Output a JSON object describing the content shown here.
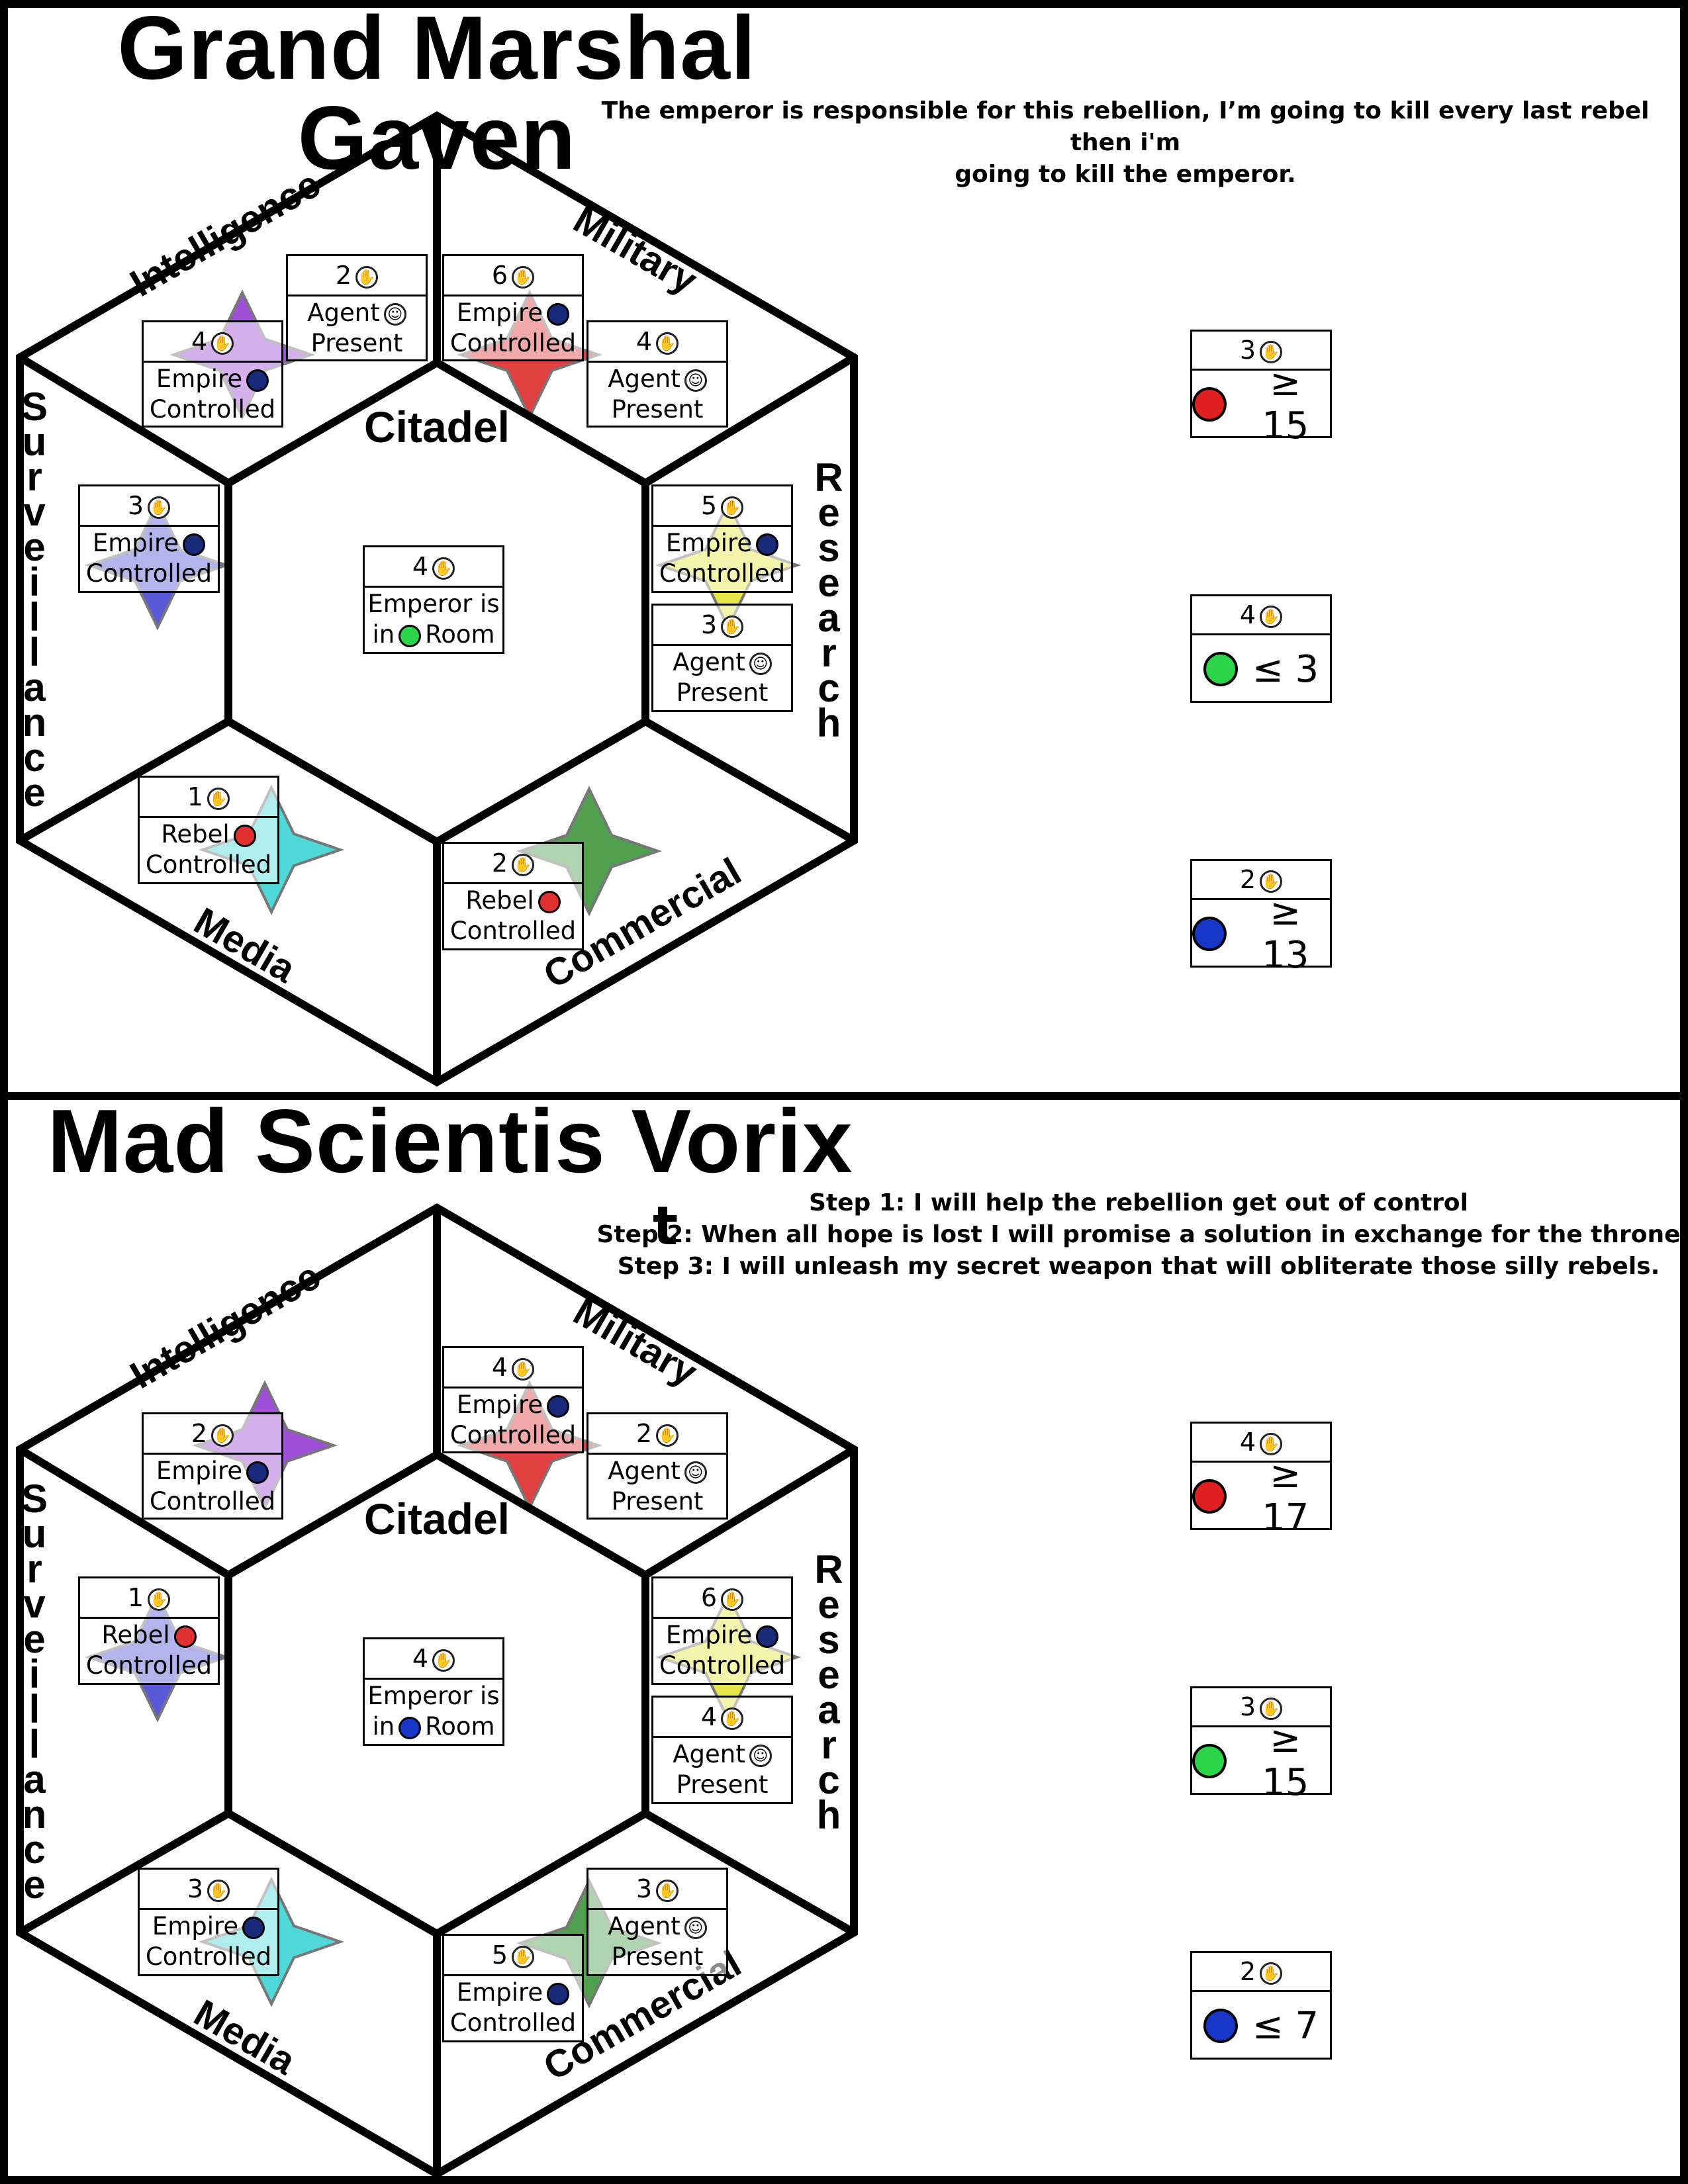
{
  "panels": [
    {
      "title": "Grand Marshal Gaven",
      "quote_lines": [
        "The emperor is responsible for this rebellion, I’m going to kill every last rebel then i'm",
        "going to kill the emperor."
      ],
      "stray_char": "",
      "sectors": {
        "intelligence": "Intelligence",
        "military": "Military",
        "surveillance": "Surveillance",
        "research": "Research",
        "media": "Media",
        "commercial": "Commercial",
        "citadel": "Citadel"
      },
      "cards": {
        "intel_a": {
          "num": "2",
          "line1": "Agent",
          "line2": "Present"
        },
        "intel_b": {
          "num": "4",
          "line1": "Empire",
          "line2": "Controlled"
        },
        "mil_a": {
          "num": "6",
          "line1": "Empire",
          "line2": "Controlled"
        },
        "mil_b": {
          "num": "4",
          "line1": "Agent",
          "line2": "Present"
        },
        "surv": {
          "num": "3",
          "line1": "Empire",
          "line2": "Controlled"
        },
        "res_a": {
          "num": "5",
          "line1": "Empire",
          "line2": "Controlled"
        },
        "res_b": {
          "num": "3",
          "line1": "Agent",
          "line2": "Present"
        },
        "media": {
          "num": "1",
          "line1": "Rebel",
          "line2": "Controlled"
        },
        "comm_a": {
          "num": "2",
          "line1": "Rebel",
          "line2": "Controlled"
        },
        "citadel": {
          "num": "4",
          "line1": "Emperor is",
          "line2a": "in",
          "line2b": "Room"
        }
      },
      "objectives": [
        {
          "num": "3",
          "icon": "gun-icon",
          "cond": "≥ 15"
        },
        {
          "num": "4",
          "icon": "money-icon",
          "cond": "≤ 3"
        },
        {
          "num": "2",
          "icon": "eye-icon",
          "cond": "≥ 13"
        }
      ]
    },
    {
      "title": "Mad Scientis  Vorix",
      "quote_lines": [
        "Step 1: I will help the rebellion get out of control",
        "Step 2: When all hope is lost I will promise a solution in exchange for the throne",
        "Step 3: I will unleash my secret weapon that will obliterate those silly rebels."
      ],
      "stray_char": "t",
      "sectors": {
        "intelligence": "Intelligence",
        "military": "Military",
        "surveillance": "Surveillance",
        "research": "Research",
        "media": "Media",
        "commercial": "Commercial",
        "citadel": "Citadel"
      },
      "cards": {
        "intel_b": {
          "num": "2",
          "line1": "Empire",
          "line2": "Controlled"
        },
        "mil_a": {
          "num": "4",
          "line1": "Empire",
          "line2": "Controlled"
        },
        "mil_b": {
          "num": "2",
          "line1": "Agent",
          "line2": "Present"
        },
        "surv": {
          "num": "1",
          "line1": "Rebel",
          "line2": "Controlled"
        },
        "res_a": {
          "num": "6",
          "line1": "Empire",
          "line2": "Controlled"
        },
        "res_b": {
          "num": "4",
          "line1": "Agent",
          "line2": "Present"
        },
        "media": {
          "num": "3",
          "line1": "Empire",
          "line2": "Controlled"
        },
        "comm_a": {
          "num": "5",
          "line1": "Empire",
          "line2": "Controlled"
        },
        "comm_b": {
          "num": "3",
          "line1": "Agent",
          "line2": "Present"
        },
        "citadel": {
          "num": "4",
          "line1": "Emperor is",
          "line2a": "in",
          "line2b": "Room"
        }
      },
      "objectives": [
        {
          "num": "4",
          "icon": "gun-icon",
          "cond": "≥ 17"
        },
        {
          "num": "3",
          "icon": "money-icon",
          "cond": "≥ 15"
        },
        {
          "num": "2",
          "icon": "eye-icon",
          "cond": "≤ 7"
        }
      ]
    }
  ],
  "colors": {
    "intelligence": "#a050d8",
    "military": "#e04040",
    "surveillance": "#5a5ad8",
    "research": "#e6e64a",
    "media": "#50d8d8",
    "commercial": "#50a050"
  }
}
